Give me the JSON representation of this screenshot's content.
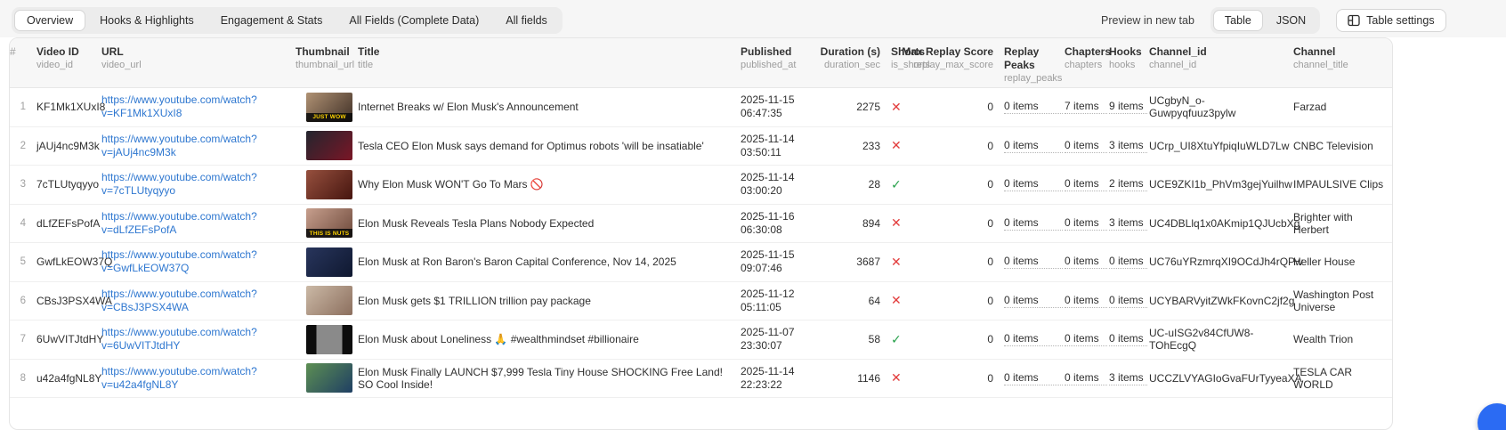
{
  "toolbar": {
    "tabs": [
      {
        "label": "Overview",
        "active": true
      },
      {
        "label": "Hooks & Highlights",
        "active": false
      },
      {
        "label": "Engagement & Stats",
        "active": false
      },
      {
        "label": "All Fields (Complete Data)",
        "active": false
      },
      {
        "label": "All fields",
        "active": false
      }
    ],
    "preview_link": "Preview in new tab",
    "view_options": [
      {
        "label": "Table",
        "active": true
      },
      {
        "label": "JSON",
        "active": false
      }
    ],
    "table_settings_label": "Table settings"
  },
  "table": {
    "columns": [
      {
        "label": "#",
        "field": ""
      },
      {
        "label": "Video ID",
        "field": "video_id"
      },
      {
        "label": "URL",
        "field": "video_url"
      },
      {
        "label": "Thumbnail",
        "field": "thumbnail_url"
      },
      {
        "label": "Title",
        "field": "title"
      },
      {
        "label": "Published",
        "field": "published_at"
      },
      {
        "label": "Duration (s)",
        "field": "duration_sec"
      },
      {
        "label": "Shorts",
        "field": "is_shorts"
      },
      {
        "label": "Max Replay Score",
        "field": "replay_max_score"
      },
      {
        "label": "Replay Peaks",
        "field": "replay_peaks"
      },
      {
        "label": "Chapters",
        "field": "chapters"
      },
      {
        "label": "Hooks",
        "field": "hooks"
      },
      {
        "label": "Channel_id",
        "field": "channel_id"
      },
      {
        "label": "Channel",
        "field": "channel_title"
      }
    ],
    "rows": [
      {
        "index": "1",
        "video_id": "KF1Mk1XUxI8",
        "video_url": "https://www.youtube.com/watch?v=KF1Mk1XUxI8",
        "thumb": {
          "caption": "JUST WOW",
          "c1": "#b09274",
          "c2": "#3f2f26"
        },
        "title": "Internet Breaks w/ Elon Musk's Announcement",
        "published_at": "2025-11-15 06:47:35",
        "duration_sec": "2275",
        "is_shorts": false,
        "replay_max_score": "0",
        "replay_peaks": "0 items",
        "chapters": "7 items",
        "hooks": "9 items",
        "channel_id": "UCgbyN_o-Guwpyqfuuz3pylw",
        "channel_title": "Farzad"
      },
      {
        "index": "2",
        "video_id": "jAUj4nc9M3k",
        "video_url": "https://www.youtube.com/watch?v=jAUj4nc9M3k",
        "thumb": {
          "caption": "",
          "c1": "#23252e",
          "c2": "#7a1626"
        },
        "title": "Tesla CEO Elon Musk says demand for Optimus robots 'will be insatiable'",
        "published_at": "2025-11-14 03:50:11",
        "duration_sec": "233",
        "is_shorts": false,
        "replay_max_score": "0",
        "replay_peaks": "0 items",
        "chapters": "0 items",
        "hooks": "3 items",
        "channel_id": "UCrp_UI8XtuYfpiqIuWLD7Lw",
        "channel_title": "CNBC Television"
      },
      {
        "index": "3",
        "video_id": "7cTLUtyqyyo",
        "video_url": "https://www.youtube.com/watch?v=7cTLUtyqyyo",
        "thumb": {
          "caption": "",
          "c1": "#96503e",
          "c2": "#46150f"
        },
        "title": "Why Elon Musk WON'T Go To Mars 🚫",
        "published_at": "2025-11-14 03:00:20",
        "duration_sec": "28",
        "is_shorts": true,
        "replay_max_score": "0",
        "replay_peaks": "0 items",
        "chapters": "0 items",
        "hooks": "2 items",
        "channel_id": "UCE9ZKI1b_PhVm3gejYuilhw",
        "channel_title": "IMPAULSIVE Clips"
      },
      {
        "index": "4",
        "video_id": "dLfZEFsPofA",
        "video_url": "https://www.youtube.com/watch?v=dLfZEFsPofA",
        "thumb": {
          "caption": "THIS IS NUTS",
          "c1": "#c79f8d",
          "c2": "#6e4a3c"
        },
        "title": "Elon Musk Reveals Tesla Plans Nobody Expected",
        "published_at": "2025-11-16 06:30:08",
        "duration_sec": "894",
        "is_shorts": false,
        "replay_max_score": "0",
        "replay_peaks": "0 items",
        "chapters": "0 items",
        "hooks": "3 items",
        "channel_id": "UC4DBLlq1x0AKmip1QJUcbXg",
        "channel_title": "Brighter with Herbert"
      },
      {
        "index": "5",
        "video_id": "GwfLkEOW37Q",
        "video_url": "https://www.youtube.com/watch?v=GwfLkEOW37Q",
        "thumb": {
          "caption": "",
          "c1": "#28355c",
          "c2": "#0f1830"
        },
        "title": "Elon Musk at Ron Baron's Baron Capital Conference, Nov 14, 2025",
        "published_at": "2025-11-15 09:07:46",
        "duration_sec": "3687",
        "is_shorts": false,
        "replay_max_score": "0",
        "replay_peaks": "0 items",
        "chapters": "0 items",
        "hooks": "0 items",
        "channel_id": "UC76uYRzmrqXI9OCdJh4rQPw",
        "channel_title": "Heller House"
      },
      {
        "index": "6",
        "video_id": "CBsJ3PSX4WA",
        "video_url": "https://www.youtube.com/watch?v=CBsJ3PSX4WA",
        "thumb": {
          "caption": "",
          "c1": "#cbb9a6",
          "c2": "#8c6f5e"
        },
        "title": "Elon Musk gets $1 TRILLION trillion pay package",
        "published_at": "2025-11-12 05:11:05",
        "duration_sec": "64",
        "is_shorts": false,
        "replay_max_score": "0",
        "replay_peaks": "0 items",
        "chapters": "0 items",
        "hooks": "0 items",
        "channel_id": "UCYBARVyitZWkFKovnC2jf2g",
        "channel_title": "Washington Post Universe"
      },
      {
        "index": "7",
        "video_id": "6UwVITJtdHY",
        "video_url": "https://www.youtube.com/watch?v=6UwVITJtdHY",
        "thumb": {
          "caption": "",
          "c1": "#8a8a8a",
          "c2": "#3c3c3c",
          "vertical": true
        },
        "title": "Elon Musk about Loneliness 🙏 #wealthmindset #billionaire",
        "published_at": "2025-11-07 23:30:07",
        "duration_sec": "58",
        "is_shorts": true,
        "replay_max_score": "0",
        "replay_peaks": "0 items",
        "chapters": "0 items",
        "hooks": "0 items",
        "channel_id": "UC-uISG2v84CfUW8-TOhEcgQ",
        "channel_title": "Wealth Trion"
      },
      {
        "index": "8",
        "video_id": "u42a4fgNL8Y",
        "video_url": "https://www.youtube.com/watch?v=u42a4fgNL8Y",
        "thumb": {
          "caption": "",
          "c1": "#5d8f53",
          "c2": "#1f3f63"
        },
        "title": "Elon Musk Finally LAUNCH $7,999 Tesla Tiny House SHOCKING Free Land! SO Cool Inside!",
        "published_at": "2025-11-14 22:23:22",
        "duration_sec": "1146",
        "is_shorts": false,
        "replay_max_score": "0",
        "replay_peaks": "0 items",
        "chapters": "0 items",
        "hooks": "3 items",
        "channel_id": "UCCZLVYAGIoGvaFUrTyyeaXA",
        "channel_title": "TESLA CAR WORLD"
      }
    ]
  },
  "icons": {
    "shorts_true": "✓",
    "shorts_false": "✕",
    "table_settings": "table-layout-icon"
  },
  "colors": {
    "link": "#2e77d0",
    "shorts_yes": "#27a14b",
    "shorts_no": "#e23c3c",
    "chat_widget": "#2b6bf3"
  }
}
